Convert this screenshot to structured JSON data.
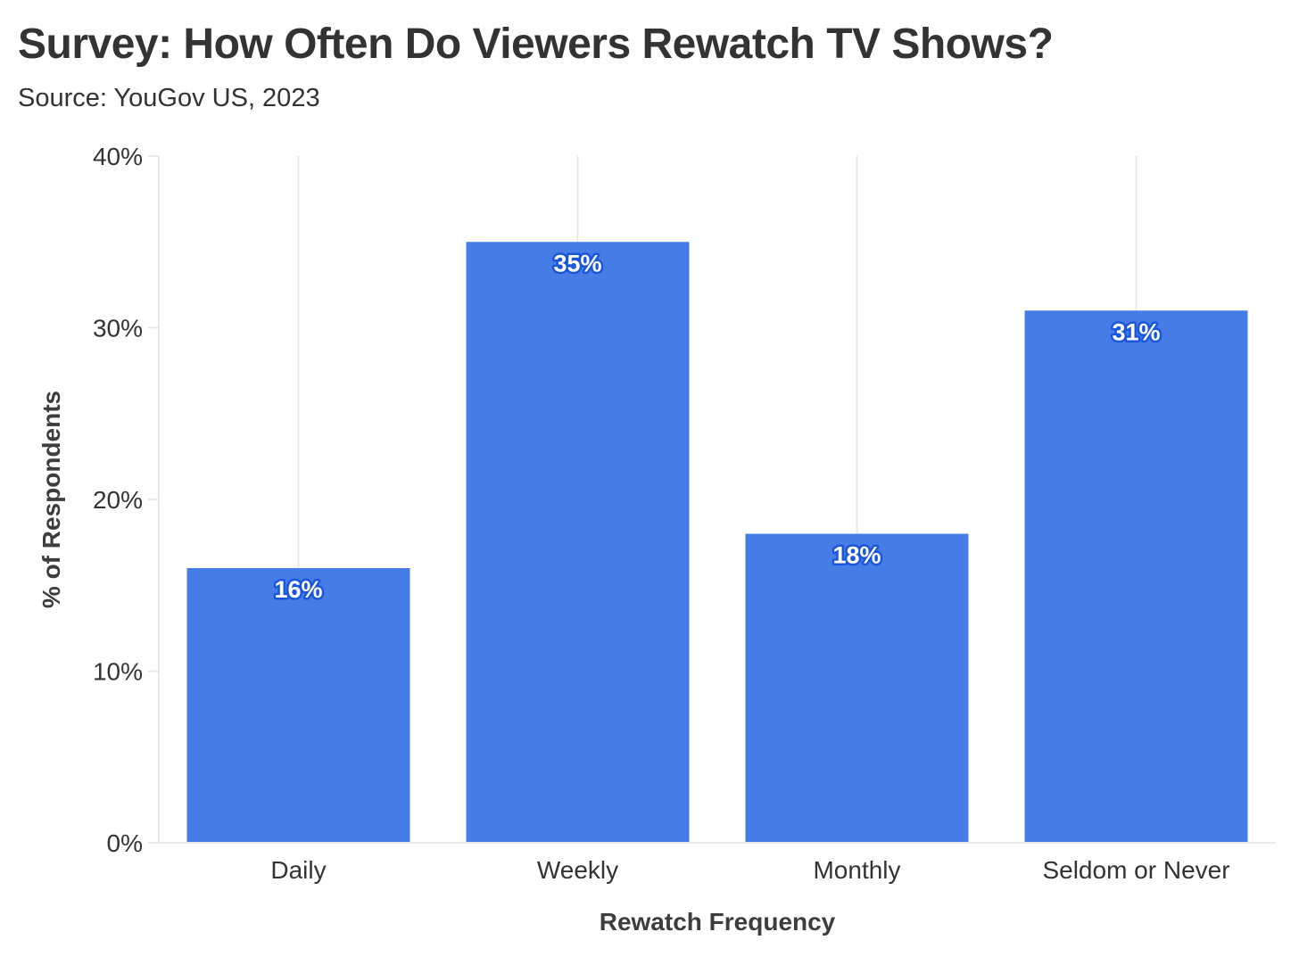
{
  "chart_data": {
    "type": "bar",
    "title": "Survey: How Often Do Viewers Rewatch TV Shows?",
    "subtitle": "Source: YouGov US, 2023",
    "xlabel": "Rewatch Frequency",
    "ylabel": "% of Respondents",
    "categories": [
      "Daily",
      "Weekly",
      "Monthly",
      "Seldom or Never"
    ],
    "values": [
      16,
      35,
      18,
      31
    ],
    "data_labels": [
      "16%",
      "35%",
      "18%",
      "31%"
    ],
    "ylim": [
      0,
      40
    ],
    "yticks": [
      0,
      10,
      20,
      30,
      40
    ],
    "ytick_labels": [
      "0%",
      "10%",
      "20%",
      "30%",
      "40%"
    ],
    "grid": true,
    "bar_color": "#3f78e4",
    "label_outline_color": "#1a56db",
    "grid_color": "#e8e8e8"
  }
}
